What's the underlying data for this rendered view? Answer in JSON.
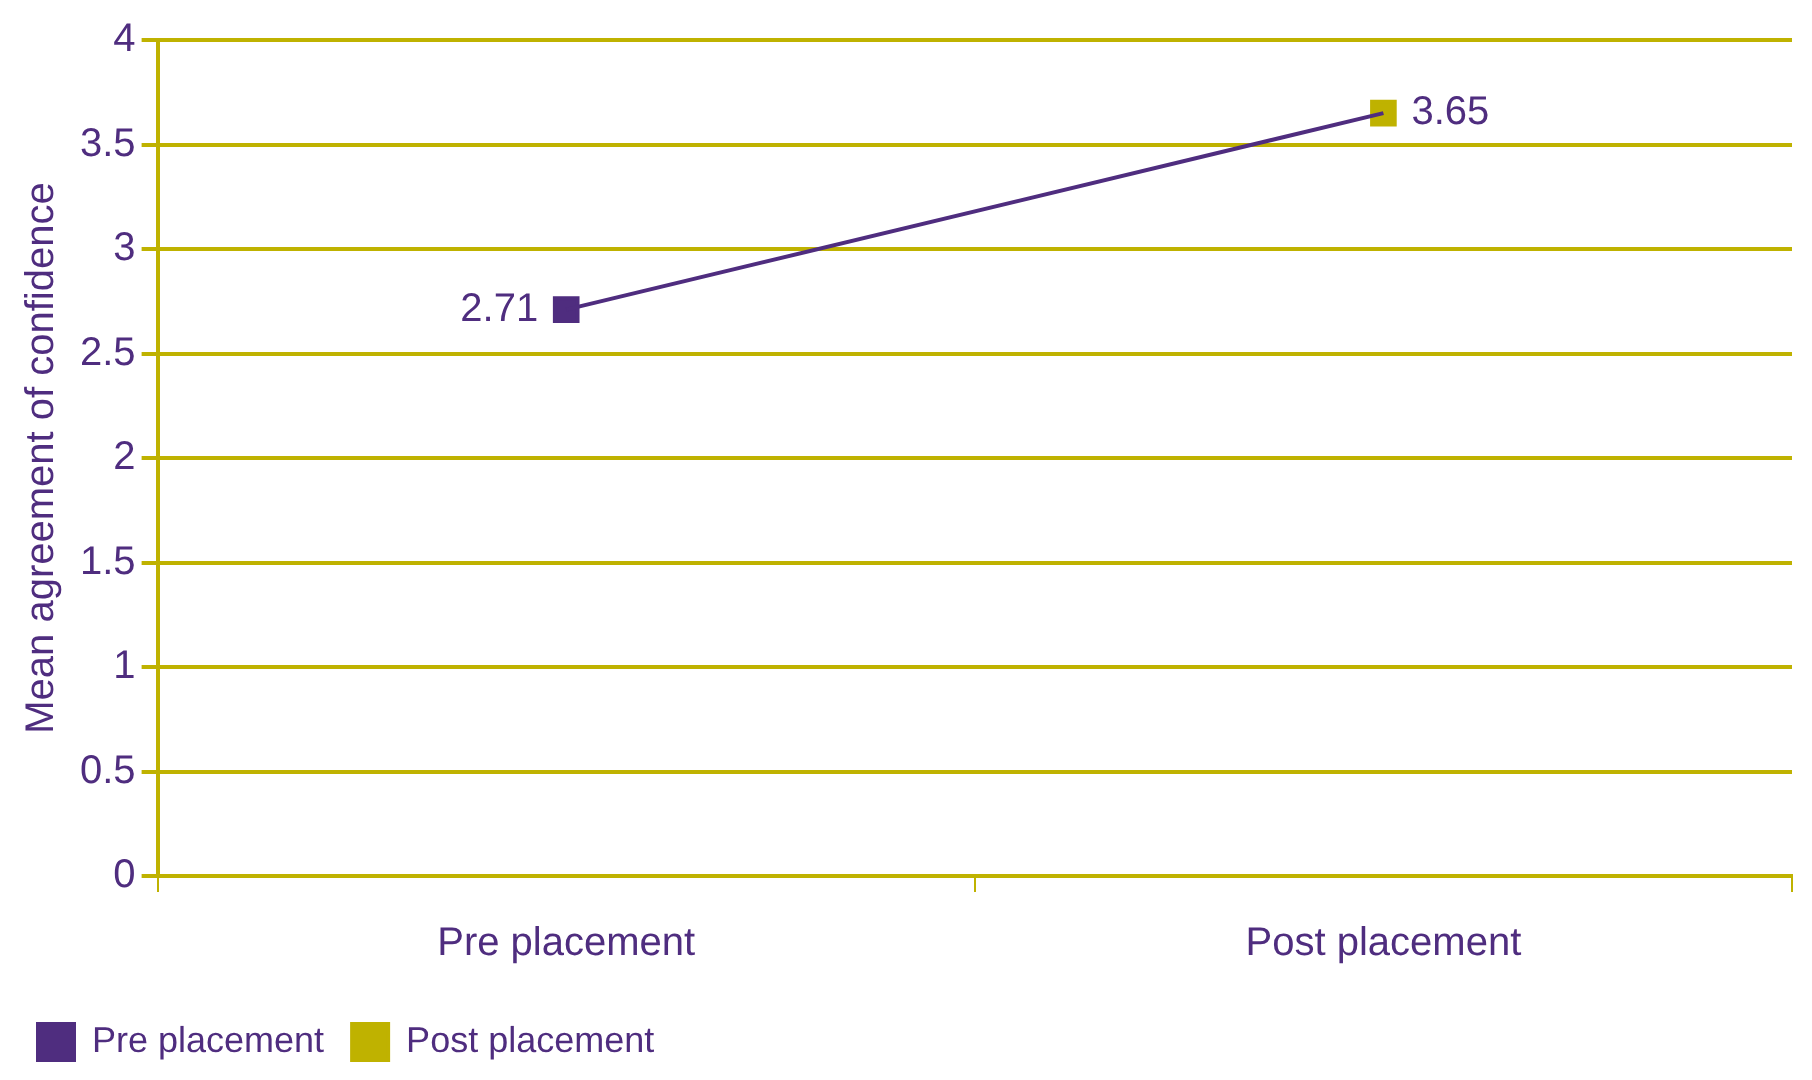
{
  "chart_data": {
    "type": "line",
    "ylabel": "Mean agreement of confidence",
    "categories": [
      "Pre placement",
      "Post placement"
    ],
    "series": [
      {
        "color": "#4f2d7f",
        "values": [
          2.71,
          3.65
        ],
        "marker": "none"
      },
      {
        "type": "scatter",
        "name": "Pre placement",
        "color": "#4f2d7f",
        "values": [
          2.71,
          null
        ],
        "value_labels": [
          "2.71",
          null
        ]
      },
      {
        "type": "scatter",
        "name": "Post placement",
        "color": "#bfb200",
        "values": [
          null,
          3.65
        ],
        "value_labels": [
          null,
          "3.65"
        ]
      }
    ],
    "ylim": [
      0,
      4
    ],
    "yticks": [
      0,
      0.5,
      1,
      1.5,
      2,
      2.5,
      3,
      3.5,
      4
    ],
    "grid": "y",
    "legend": "bottom left",
    "marker": "square",
    "line_style": "solid"
  }
}
